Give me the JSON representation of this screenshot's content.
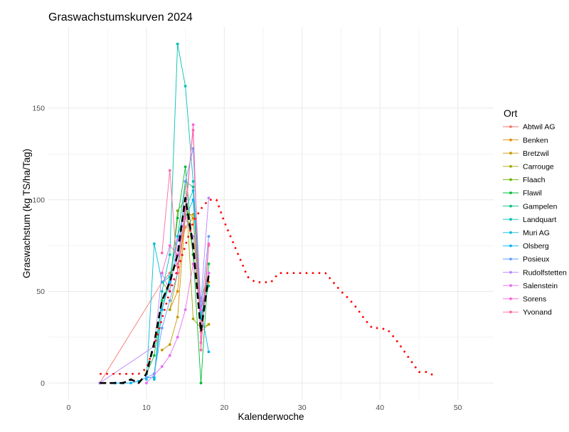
{
  "chart_data": {
    "type": "line",
    "title": "Graswachstumskurven 2024",
    "xlabel": "Kalenderwoche",
    "ylabel": "Graswachstum (kg TS/ha/Tag)",
    "xlim": [
      -2.6,
      54.6
    ],
    "ylim": [
      -9.25,
      194.25
    ],
    "xticks": [
      0,
      10,
      20,
      30,
      40,
      50
    ],
    "yticks": [
      0,
      50,
      100,
      150
    ],
    "grid": true,
    "legend_title": "Ort",
    "legend_position": "right",
    "series": [
      {
        "name": "Abtwil AG",
        "color": "#F8766D",
        "x": [
          4,
          12,
          13,
          14,
          15,
          16,
          17,
          18
        ],
        "y": [
          0,
          55,
          60,
          65,
          85,
          90,
          30,
          75
        ]
      },
      {
        "name": "Benken",
        "color": "#E58700",
        "x": [
          13,
          14,
          15,
          16,
          17,
          18
        ],
        "y": [
          40,
          50,
          95,
          90,
          40,
          55
        ]
      },
      {
        "name": "Bretzwil",
        "color": "#C99800",
        "x": [
          12,
          13,
          14,
          15,
          16,
          17,
          18
        ],
        "y": [
          18,
          21,
          36,
          92,
          92,
          28,
          32
        ]
      },
      {
        "name": "Carrouge",
        "color": "#A3A500",
        "x": [
          13,
          14,
          15,
          16,
          17,
          18
        ],
        "y": [
          40,
          60,
          110,
          35,
          30,
          32
        ]
      },
      {
        "name": "Flaach",
        "color": "#6BB100",
        "x": [
          12,
          13,
          14,
          15,
          16,
          17,
          18
        ],
        "y": [
          55,
          50,
          94,
          100,
          70,
          45,
          60
        ]
      },
      {
        "name": "Flawil",
        "color": "#00BA38",
        "x": [
          10,
          11,
          12,
          13,
          14,
          15,
          16,
          17,
          18
        ],
        "y": [
          5,
          15,
          45,
          55,
          90,
          118,
          70,
          0,
          65
        ]
      },
      {
        "name": "Gampelen",
        "color": "#00BF7D",
        "x": [
          11,
          12,
          13,
          14,
          15,
          16,
          17,
          18
        ],
        "y": [
          5,
          40,
          58,
          80,
          110,
          107,
          35,
          53
        ]
      },
      {
        "name": "Landquart",
        "color": "#00C0AF",
        "x": [
          11,
          12,
          13,
          14,
          15,
          16,
          17,
          18
        ],
        "y": [
          2,
          50,
          70,
          185,
          162,
          110,
          40,
          60
        ]
      },
      {
        "name": "Muri AG",
        "color": "#00BCD8",
        "x": [
          10,
          11,
          12,
          13,
          14,
          15,
          16,
          17,
          18
        ],
        "y": [
          2,
          76,
          55,
          58,
          80,
          95,
          105,
          35,
          60
        ]
      },
      {
        "name": "Olsberg",
        "color": "#00B0F6",
        "x": [
          6,
          7,
          8,
          9,
          10,
          11,
          12,
          13,
          14,
          15,
          16,
          17,
          18
        ],
        "y": [
          0,
          0,
          0,
          1,
          3,
          3,
          40,
          55,
          70,
          90,
          100,
          40,
          17
        ]
      },
      {
        "name": "Posieux",
        "color": "#619CFF",
        "x": [
          10,
          11,
          12,
          13,
          14,
          15,
          16,
          17,
          18
        ],
        "y": [
          3,
          5,
          30,
          45,
          60,
          110,
          128,
          40,
          80
        ]
      },
      {
        "name": "Rudolfstetten",
        "color": "#B983FF",
        "x": [
          4,
          11,
          12,
          13,
          14,
          15,
          16,
          17,
          18
        ],
        "y": [
          0,
          20,
          60,
          50,
          78,
          90,
          80,
          45,
          101
        ]
      },
      {
        "name": "Salenstein",
        "color": "#E76BF3",
        "x": [
          10,
          12,
          13,
          14,
          15,
          16,
          17,
          18
        ],
        "y": [
          0,
          9,
          15,
          25,
          40,
          65,
          40,
          60
        ]
      },
      {
        "name": "Sorens",
        "color": "#FD61D1",
        "x": [
          12,
          13,
          14,
          15,
          16,
          17,
          18
        ],
        "y": [
          60,
          75,
          70,
          90,
          141,
          22,
          76
        ]
      },
      {
        "name": "Yvonand",
        "color": "#FF67A4",
        "x": [
          12,
          13,
          14,
          15,
          16,
          17,
          18
        ],
        "y": [
          71,
          116,
          60,
          95,
          138,
          18,
          75
        ]
      }
    ],
    "dotted_line": {
      "color": "#FF0000",
      "x": [
        4,
        5,
        6,
        7,
        8,
        9,
        10,
        11,
        12,
        13,
        14,
        15,
        16,
        17,
        18,
        19,
        20,
        21,
        22,
        23,
        24,
        25,
        26,
        27,
        28,
        29,
        30,
        31,
        32,
        33,
        34,
        35,
        36,
        37,
        38,
        39,
        40,
        41,
        42,
        43,
        44,
        45,
        46,
        47
      ],
      "y": [
        5,
        5,
        5,
        5,
        5,
        5,
        8,
        20,
        35,
        50,
        62,
        75,
        88,
        95,
        100,
        100,
        88,
        78,
        68,
        58,
        55,
        55,
        55,
        60,
        60,
        60,
        60,
        60,
        60,
        60,
        55,
        50,
        46,
        41,
        35,
        30,
        30,
        29,
        24,
        18,
        12,
        6,
        6,
        4
      ]
    },
    "dashed_line": {
      "color": "#000000",
      "x": [
        4,
        5,
        6,
        7,
        8,
        9,
        10,
        11,
        12,
        13,
        14,
        15,
        16,
        17,
        18
      ],
      "y": [
        0,
        0,
        0,
        0,
        2,
        0,
        5,
        22,
        45,
        55,
        70,
        101,
        75,
        28,
        59
      ]
    }
  }
}
